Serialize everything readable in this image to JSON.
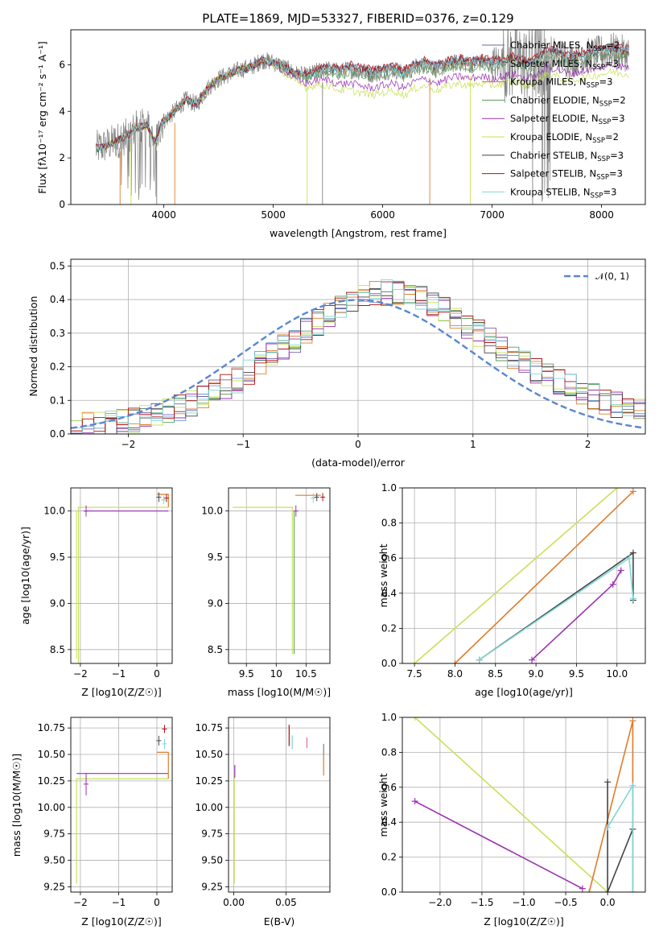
{
  "colors": {
    "Chabrier MILES": "#7b5fb0",
    "Salpeter MILES": "#6a9bd8",
    "Kroupa MILES": "#d98b2b",
    "Chabrier ELODIE": "#5a9a5a",
    "Salpeter ELODIE": "#9b30b0",
    "Kroupa ELODIE": "#c8e05a",
    "Chabrier STELIB": "#444444",
    "Salpeter STELIB": "#b01010",
    "Kroupa STELIB": "#7fd6d6",
    "data": "#808080",
    "model_orange": "#e07b2a",
    "gaussian": "#5b86d0",
    "grid": "#b0b0b0"
  },
  "chart_data": [
    {
      "id": "spectrum",
      "type": "line",
      "title": "PLATE=1869, MJD=53327, FIBERID=0376, z=0.129",
      "xlabel": "wavelength [Angstrom, rest frame]",
      "ylabel": "Flux [f_λ 10^{-17} erg cm^{-2} s^{-1} A^{-1}]",
      "xlim": [
        3150,
        8400
      ],
      "ylim": [
        0,
        7.5
      ],
      "xticks": [
        4000,
        5000,
        6000,
        7000,
        8000
      ],
      "yticks": [
        0,
        2,
        4,
        6
      ],
      "grid": false,
      "legend_position": "top-right",
      "legend": [
        {
          "label": "Chabrier MILES, N",
          "sub": "SSP",
          "suffix": "=2"
        },
        {
          "label": "Salpeter MILES, N",
          "sub": "SSP",
          "suffix": "=3"
        },
        {
          "label": "Kroupa MILES, N",
          "sub": "SSP",
          "suffix": "=3"
        },
        {
          "label": "Chabrier ELODIE, N",
          "sub": "SSP",
          "suffix": "=2"
        },
        {
          "label": "Salpeter ELODIE, N",
          "sub": "SSP",
          "suffix": "=3"
        },
        {
          "label": "Kroupa ELODIE, N",
          "sub": "SSP",
          "suffix": "=2"
        },
        {
          "label": "Chabrier STELIB, N",
          "sub": "SSP",
          "suffix": "=3"
        },
        {
          "label": "Salpeter STELIB, N",
          "sub": "SSP",
          "suffix": "=3"
        },
        {
          "label": "Kroupa STELIB, N",
          "sub": "SSP",
          "suffix": "=3"
        }
      ],
      "legend_colors": [
        "Chabrier MILES",
        "Salpeter MILES",
        "Kroupa MILES",
        "Chabrier ELODIE",
        "Salpeter ELODIE",
        "Kroupa ELODIE",
        "Chabrier STELIB",
        "Salpeter STELIB",
        "Kroupa STELIB"
      ],
      "continuum_points": [
        [
          3380,
          2.4
        ],
        [
          3450,
          2.5
        ],
        [
          3550,
          2.7
        ],
        [
          3650,
          2.9
        ],
        [
          3750,
          3.3
        ],
        [
          3850,
          3.4
        ],
        [
          3920,
          2.6
        ],
        [
          3980,
          3.5
        ],
        [
          4100,
          4.0
        ],
        [
          4200,
          4.5
        ],
        [
          4300,
          4.3
        ],
        [
          4400,
          5.0
        ],
        [
          4500,
          5.4
        ],
        [
          4600,
          5.6
        ],
        [
          4700,
          5.8
        ],
        [
          4800,
          5.9
        ],
        [
          4900,
          6.2
        ],
        [
          5000,
          6.1
        ],
        [
          5100,
          5.9
        ],
        [
          5200,
          5.6
        ],
        [
          5300,
          5.5
        ],
        [
          5400,
          5.7
        ],
        [
          5500,
          5.8
        ],
        [
          5600,
          5.7
        ],
        [
          5700,
          5.8
        ],
        [
          5800,
          5.7
        ],
        [
          5900,
          5.6
        ],
        [
          6000,
          5.7
        ],
        [
          6100,
          5.8
        ],
        [
          6200,
          5.6
        ],
        [
          6300,
          5.9
        ],
        [
          6400,
          6.0
        ],
        [
          6500,
          5.8
        ],
        [
          6600,
          6.0
        ],
        [
          6700,
          6.1
        ],
        [
          6800,
          6.0
        ],
        [
          6900,
          6.1
        ],
        [
          7000,
          6.0
        ],
        [
          7100,
          6.1
        ],
        [
          7200,
          6.2
        ],
        [
          7300,
          6.0
        ],
        [
          7400,
          6.1
        ],
        [
          7500,
          6.5
        ],
        [
          7600,
          6.4
        ],
        [
          7700,
          6.2
        ],
        [
          7800,
          6.3
        ],
        [
          7900,
          6.4
        ],
        [
          8000,
          6.5
        ],
        [
          8100,
          6.6
        ],
        [
          8200,
          6.5
        ]
      ],
      "absorption_spikes": [
        3600,
        3700,
        3935,
        4100,
        5310,
        5450,
        6430,
        6800,
        7370
      ]
    },
    {
      "id": "residuals",
      "type": "line",
      "xlabel": "(data-model)/error",
      "ylabel": "Normed distribution",
      "xlim": [
        -2.5,
        2.5
      ],
      "ylim": [
        0,
        0.52
      ],
      "xticks": [
        -2,
        -1,
        0,
        1,
        2
      ],
      "yticks": [
        0.0,
        0.1,
        0.2,
        0.3,
        0.4,
        0.5
      ],
      "grid": true,
      "legend_position": "top-right",
      "legend": [
        {
          "label": "𝒩(0, 1)"
        }
      ],
      "gaussian": {
        "mean": 0,
        "sigma": 1
      },
      "histogram_mean_shape": [
        [
          -2.5,
          0.02
        ],
        [
          -2.2,
          0.03
        ],
        [
          -2.0,
          0.04
        ],
        [
          -1.8,
          0.05
        ],
        [
          -1.6,
          0.07
        ],
        [
          -1.4,
          0.1
        ],
        [
          -1.2,
          0.13
        ],
        [
          -1.0,
          0.17
        ],
        [
          -0.8,
          0.22
        ],
        [
          -0.6,
          0.27
        ],
        [
          -0.4,
          0.32
        ],
        [
          -0.2,
          0.37
        ],
        [
          0.0,
          0.4
        ],
        [
          0.2,
          0.42
        ],
        [
          0.4,
          0.42
        ],
        [
          0.6,
          0.4
        ],
        [
          0.8,
          0.36
        ],
        [
          1.0,
          0.31
        ],
        [
          1.2,
          0.27
        ],
        [
          1.4,
          0.22
        ],
        [
          1.6,
          0.18
        ],
        [
          1.8,
          0.15
        ],
        [
          2.0,
          0.12
        ],
        [
          2.2,
          0.09
        ],
        [
          2.5,
          0.07
        ]
      ]
    },
    {
      "id": "age-vs-Z",
      "type": "scatter",
      "xlabel": "Z [log10(Z/Z☉)]",
      "ylabel": "age  [log10(age/yr)]",
      "xlim": [
        -2.25,
        0.4
      ],
      "ylim": [
        8.35,
        10.25
      ],
      "xticks": [
        -2,
        -1,
        0
      ],
      "yticks": [
        8.5,
        9.0,
        9.5,
        10.0
      ],
      "grid": true
    },
    {
      "id": "age-vs-mass",
      "type": "scatter",
      "xlabel": "mass [log10(M/M☉)]",
      "ylabel": "",
      "xlim": [
        9.2,
        10.9
      ],
      "ylim": [
        8.35,
        10.25
      ],
      "xticks": [
        9.5,
        10.0,
        10.5
      ],
      "yticks": [
        8.5,
        9.0,
        9.5,
        10.0
      ],
      "grid": true
    },
    {
      "id": "massweight-vs-age",
      "type": "line",
      "xlabel": "age  [log10(age/yr)]",
      "ylabel": "mass weight",
      "xlim": [
        7.35,
        10.35
      ],
      "ylim": [
        0,
        1.0
      ],
      "xticks": [
        7.5,
        8.0,
        8.5,
        9.0,
        9.5,
        10.0
      ],
      "yticks": [
        0.0,
        0.2,
        0.4,
        0.6,
        0.8,
        1.0
      ],
      "grid": true,
      "series": [
        {
          "color": "Kroupa ELODIE",
          "x": [
            7.5,
            10.0
          ],
          "y": [
            0.0,
            1.0
          ]
        },
        {
          "color": "Kroupa MILES",
          "x": [
            8.0,
            10.2
          ],
          "y": [
            0.0,
            0.98
          ]
        },
        {
          "color": "Chabrier STELIB",
          "x": [
            8.3,
            10.2,
            10.2
          ],
          "y": [
            0.02,
            0.63,
            0.36
          ]
        },
        {
          "color": "Kroupa STELIB",
          "x": [
            8.3,
            10.15,
            10.2
          ],
          "y": [
            0.02,
            0.6,
            0.37
          ]
        },
        {
          "color": "Salpeter ELODIE",
          "x": [
            8.95,
            9.95,
            10.05
          ],
          "y": [
            0.02,
            0.45,
            0.53
          ]
        }
      ]
    },
    {
      "id": "mass-vs-Z",
      "type": "scatter",
      "xlabel": "Z [log10(Z/Z☉)]",
      "ylabel": "mass [log10(M/M☉)]",
      "xlim": [
        -2.25,
        0.4
      ],
      "ylim": [
        9.2,
        10.85
      ],
      "xticks": [
        -2,
        -1,
        0
      ],
      "yticks": [
        9.25,
        9.5,
        9.75,
        10.0,
        10.25,
        10.5,
        10.75
      ],
      "grid": true
    },
    {
      "id": "mass-vs-EBV",
      "type": "scatter",
      "xlabel": "E(B-V)",
      "ylabel": "",
      "xlim": [
        -0.005,
        0.092
      ],
      "ylim": [
        9.2,
        10.85
      ],
      "xticks": [
        0.0,
        0.05
      ],
      "yticks": [
        9.25,
        9.5,
        9.75,
        10.0,
        10.25,
        10.5,
        10.75
      ],
      "grid": true
    },
    {
      "id": "massweight-vs-Z",
      "type": "line",
      "xlabel": "Z [log10(Z/Z☉)]",
      "ylabel": "mass weight",
      "xlim": [
        -2.45,
        0.45
      ],
      "ylim": [
        0,
        1.0
      ],
      "xticks": [
        -2.0,
        -1.5,
        -1.0,
        -0.5,
        0.0
      ],
      "yticks": [
        0.0,
        0.2,
        0.4,
        0.6,
        0.8,
        1.0
      ],
      "grid": true,
      "series": [
        {
          "color": "Kroupa ELODIE",
          "x": [
            -2.3,
            0.0
          ],
          "y": [
            1.0,
            0.0
          ]
        },
        {
          "color": "Salpeter ELODIE",
          "x": [
            -2.3,
            -0.3
          ],
          "y": [
            0.52,
            0.02
          ]
        },
        {
          "color": "Kroupa MILES",
          "x": [
            -0.22,
            0.3,
            0.3
          ],
          "y": [
            0.0,
            0.98,
            0.0
          ]
        },
        {
          "color": "Chabrier STELIB",
          "x": [
            0.0,
            0.0,
            0.3
          ],
          "y": [
            0.63,
            0.0,
            0.36
          ]
        },
        {
          "color": "Kroupa STELIB",
          "x": [
            0.0,
            0.3,
            0.3
          ],
          "y": [
            0.37,
            0.61,
            0.0
          ]
        }
      ]
    }
  ],
  "labels": {
    "title": "PLATE=1869, MJD=53327, FIBERID=0376, z=0.129",
    "gauss_legend": "𝒩(0, 1)"
  }
}
